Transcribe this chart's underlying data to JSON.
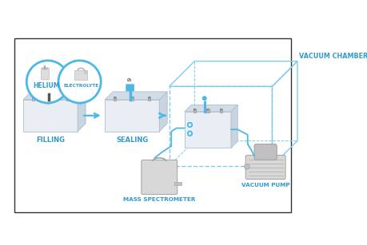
{
  "bg_outer": "#ffffff",
  "border_color": "#333333",
  "blue": "#3399cc",
  "mid_blue": "#4db8e8",
  "light_blue": "#80ccee",
  "pale_blue": "#c0e4f4",
  "cell_face": "#e8eef4",
  "cell_top": "#d0dce8",
  "cell_right": "#c8d4e0",
  "cell_outline": "#b0bec8",
  "gray_light": "#d8d8d8",
  "gray_mid": "#c0c0c0",
  "gray_dark": "#a0a0a0",
  "text_blue": "#3399cc",
  "text_dark": "#2266aa",
  "labels": {
    "helium": "HELIUM",
    "electrolyte": "ELECTROLYTE",
    "filling": "FILLING",
    "sealing": "SEALING",
    "mass_spec": "MASS SPECTROMETER",
    "vacuum_pump": "VACUUM PUMP",
    "vacuum_chamber": "VACUUM CHAMBER"
  }
}
